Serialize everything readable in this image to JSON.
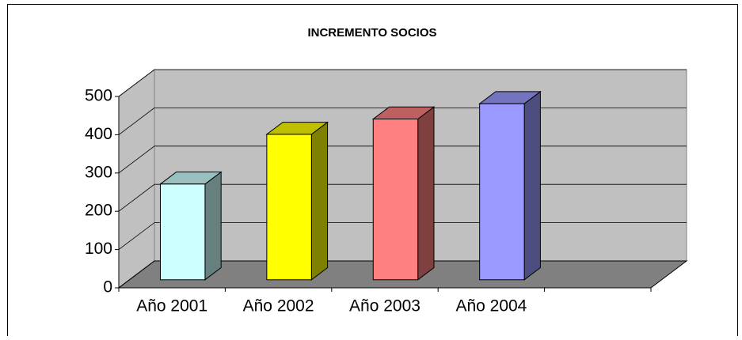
{
  "chart_data": {
    "type": "bar3d",
    "title": "INCREMENTO SOCIOS",
    "categories": [
      "Año 2001",
      "Año 2002",
      "Año 2003",
      "Año 2004",
      null
    ],
    "values": [
      250,
      380,
      420,
      460,
      null
    ],
    "colors": [
      "#ccffff",
      "#ffff00",
      "#ff8080",
      "#9999ff",
      null
    ],
    "ylim": [
      0,
      500
    ],
    "yticks": [
      0,
      100,
      200,
      300,
      400,
      500
    ],
    "grid": true
  }
}
